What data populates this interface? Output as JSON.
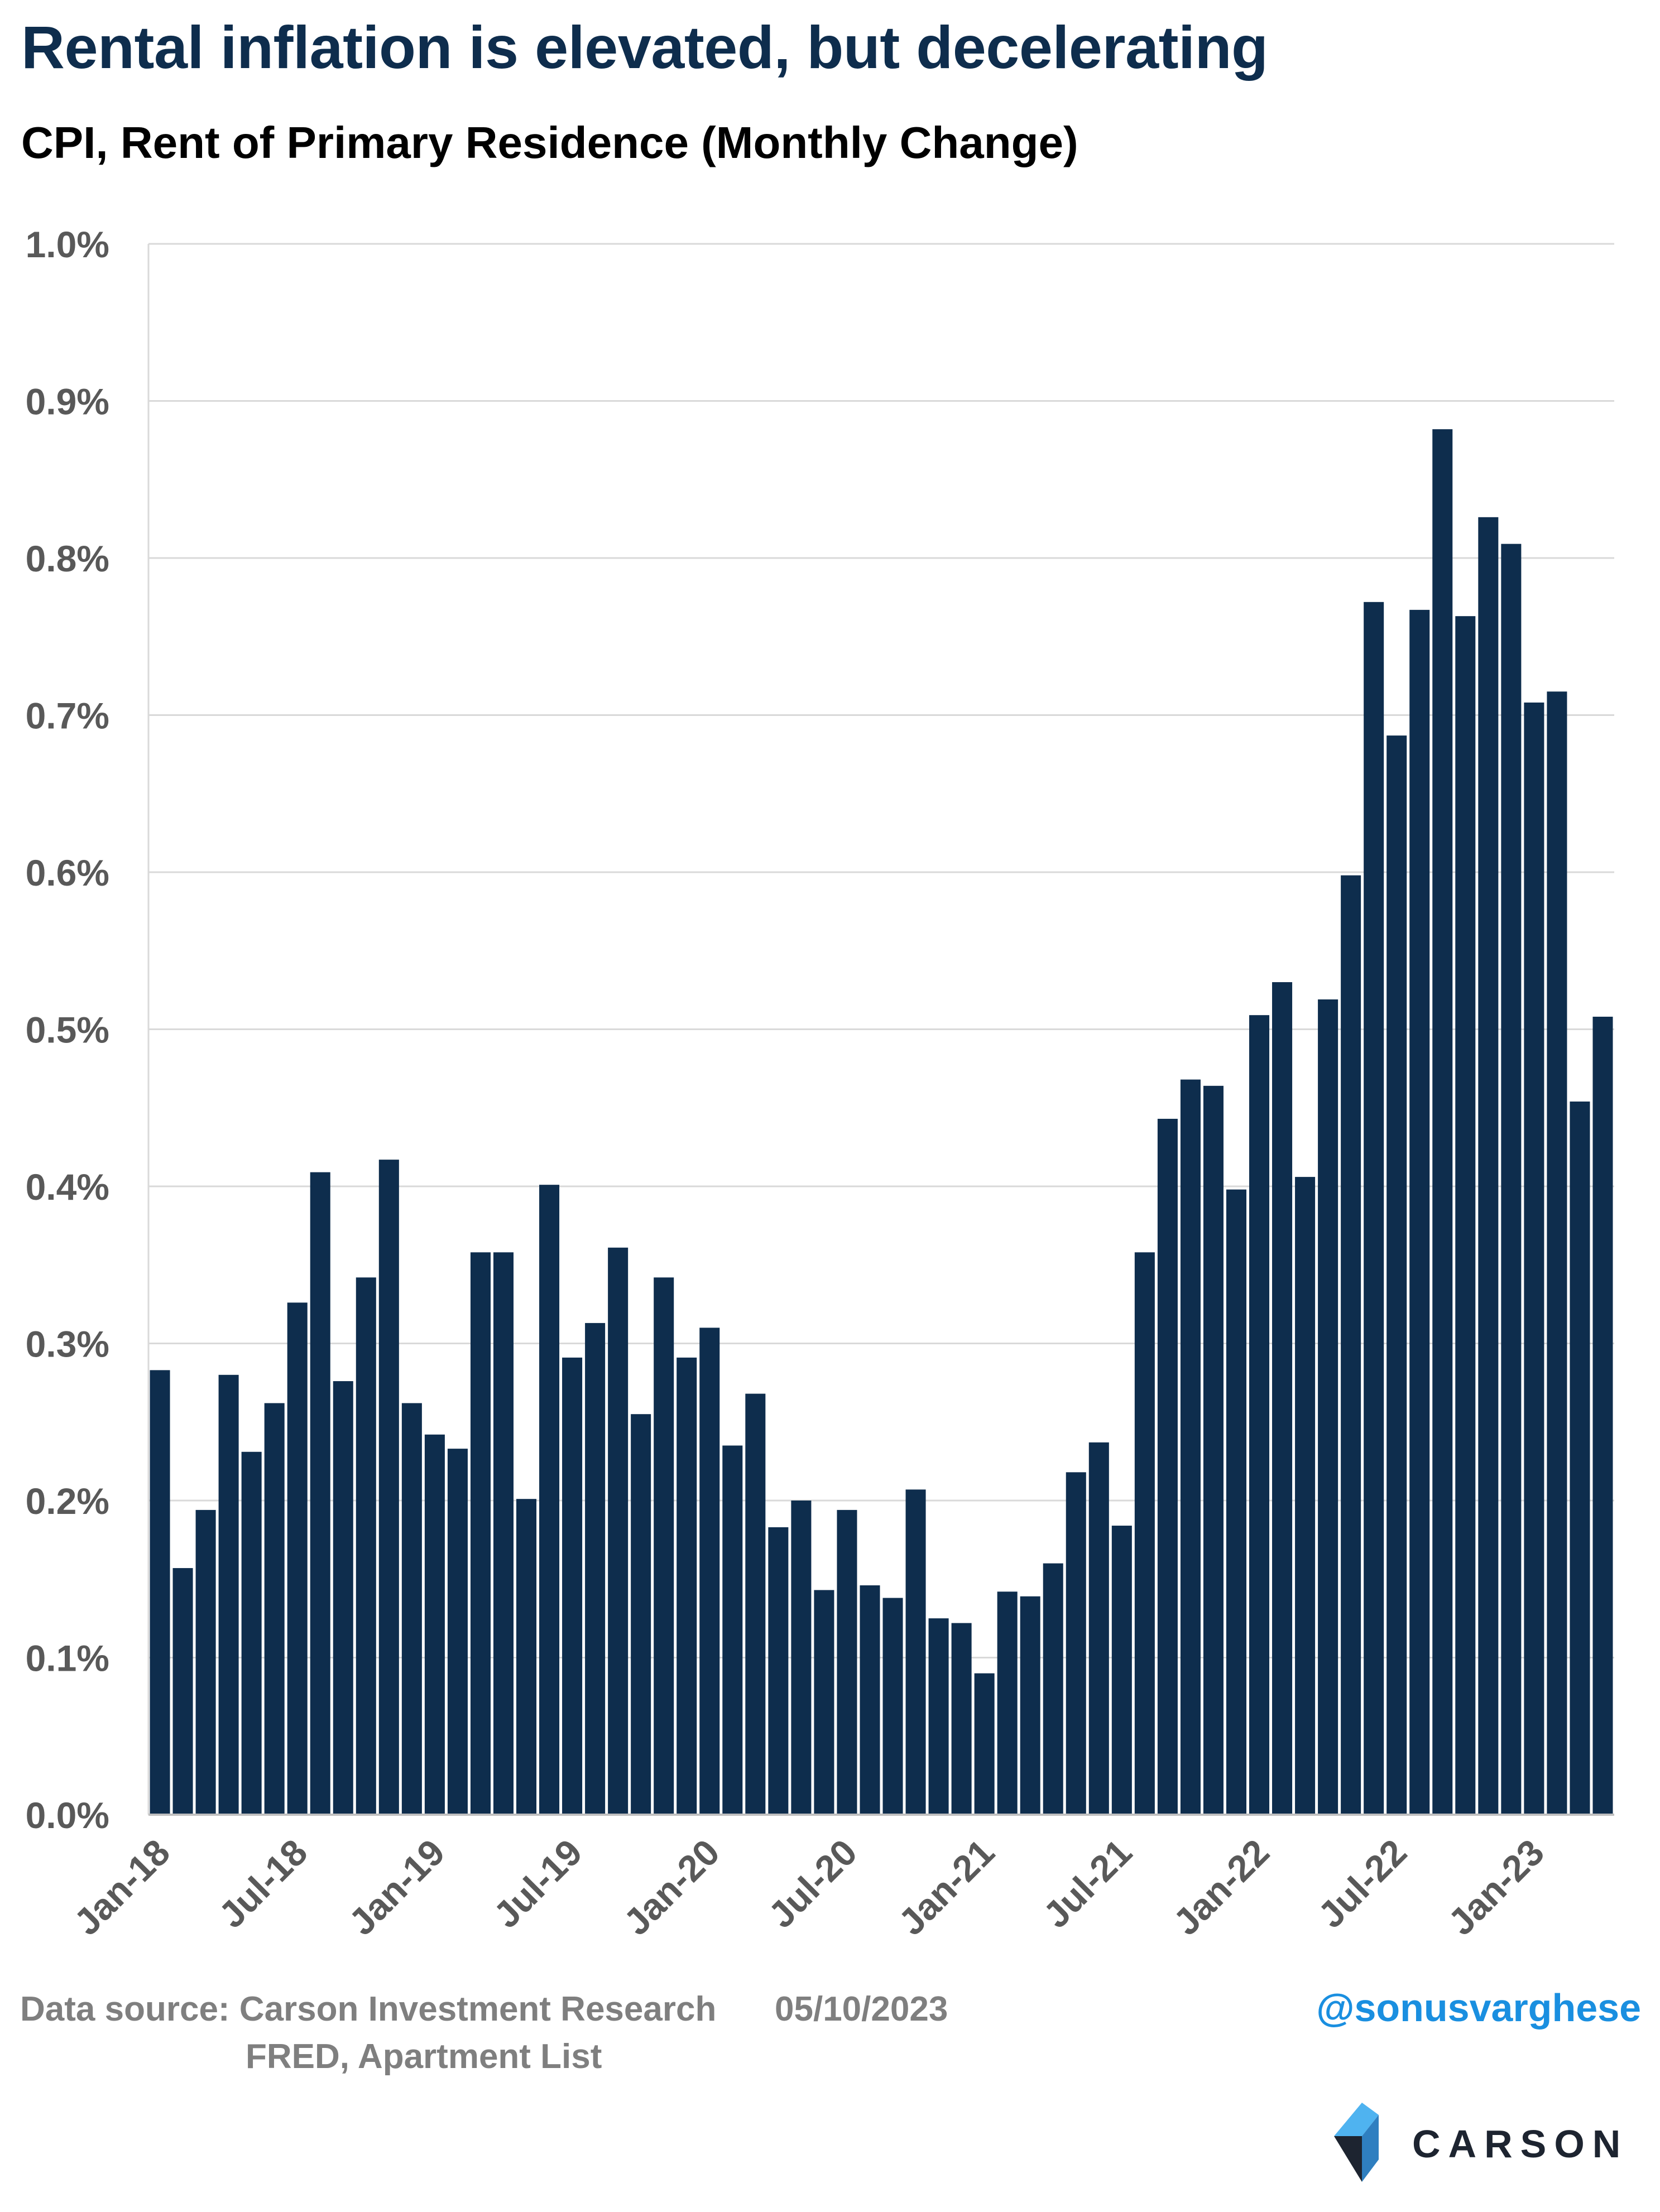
{
  "header": {
    "title": "Rental inflation is elevated, but decelerating",
    "subtitle": "CPI, Rent of Primary Residence (Monthly Change)"
  },
  "footer": {
    "source_line1": "Data source: Carson Investment Research",
    "source_line2": "FRED, Apartment List",
    "date": "05/10/2023",
    "handle": "@sonusvarghese",
    "logo_text": "CARSON"
  },
  "colors": {
    "bar": "#0e2d4d",
    "title": "#0e2d4d",
    "grid": "#d9d9d9",
    "axis_text": "#595959",
    "handle": "#1a8fe0",
    "logo_light": "#4fb3f0",
    "logo_dark": "#1d2430"
  },
  "chart_data": {
    "type": "bar",
    "title": "CPI, Rent of Primary Residence (Monthly Change)",
    "ylim": [
      0,
      1.0
    ],
    "y_ticks": [
      "0.0%",
      "0.1%",
      "0.2%",
      "0.3%",
      "0.4%",
      "0.5%",
      "0.6%",
      "0.7%",
      "0.8%",
      "0.9%",
      "1.0%"
    ],
    "x_tick_labels": [
      {
        "index": 0,
        "label": "Jan-18"
      },
      {
        "index": 6,
        "label": "Jul-18"
      },
      {
        "index": 12,
        "label": "Jan-19"
      },
      {
        "index": 18,
        "label": "Jul-19"
      },
      {
        "index": 24,
        "label": "Jan-20"
      },
      {
        "index": 30,
        "label": "Jul-20"
      },
      {
        "index": 36,
        "label": "Jan-21"
      },
      {
        "index": 42,
        "label": "Jul-21"
      },
      {
        "index": 48,
        "label": "Jan-22"
      },
      {
        "index": 54,
        "label": "Jul-22"
      },
      {
        "index": 60,
        "label": "Jan-23"
      }
    ],
    "grid": true,
    "legend": "none",
    "categories": [
      "Jan-18",
      "Feb-18",
      "Mar-18",
      "Apr-18",
      "May-18",
      "Jun-18",
      "Jul-18",
      "Aug-18",
      "Sep-18",
      "Oct-18",
      "Nov-18",
      "Dec-18",
      "Jan-19",
      "Feb-19",
      "Mar-19",
      "Apr-19",
      "May-19",
      "Jun-19",
      "Jul-19",
      "Aug-19",
      "Sep-19",
      "Oct-19",
      "Nov-19",
      "Dec-19",
      "Jan-20",
      "Feb-20",
      "Mar-20",
      "Apr-20",
      "May-20",
      "Jun-20",
      "Jul-20",
      "Aug-20",
      "Sep-20",
      "Oct-20",
      "Nov-20",
      "Dec-20",
      "Jan-21",
      "Feb-21",
      "Mar-21",
      "Apr-21",
      "May-21",
      "Jun-21",
      "Jul-21",
      "Aug-21",
      "Sep-21",
      "Oct-21",
      "Nov-21",
      "Dec-21",
      "Jan-22",
      "Feb-22",
      "Mar-22",
      "Apr-22",
      "May-22",
      "Jun-22",
      "Jul-22",
      "Aug-22",
      "Sep-22",
      "Oct-22",
      "Nov-22",
      "Dec-22",
      "Jan-23",
      "Feb-23",
      "Mar-23",
      "Apr-23"
    ],
    "values": [
      0.283,
      0.157,
      0.194,
      0.28,
      0.231,
      0.262,
      0.326,
      0.409,
      0.276,
      0.342,
      0.417,
      0.262,
      0.242,
      0.233,
      0.358,
      0.358,
      0.201,
      0.401,
      0.291,
      0.313,
      0.361,
      0.255,
      0.342,
      0.291,
      0.31,
      0.235,
      0.268,
      0.183,
      0.2,
      0.143,
      0.194,
      0.146,
      0.138,
      0.207,
      0.125,
      0.122,
      0.09,
      0.142,
      0.139,
      0.16,
      0.218,
      0.237,
      0.184,
      0.358,
      0.443,
      0.468,
      0.464,
      0.398,
      0.509,
      0.53,
      0.406,
      0.519,
      0.598,
      0.772,
      0.687,
      0.767,
      0.882,
      0.763,
      0.826,
      0.809,
      0.708,
      0.715,
      0.454,
      0.508
    ]
  }
}
